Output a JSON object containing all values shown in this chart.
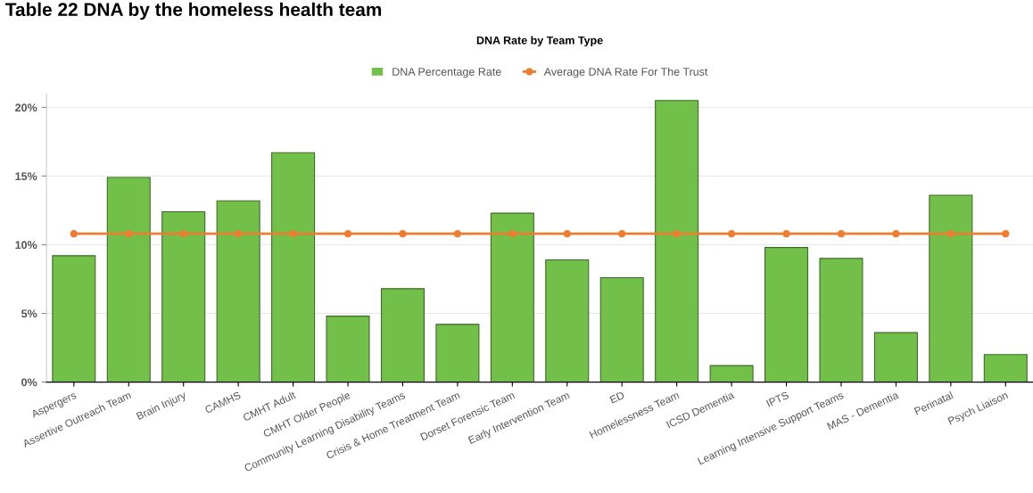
{
  "chart_data": {
    "type": "bar",
    "title": "DNA Rate by Team Type",
    "annotations": [
      "Table 22 DNA by the homeless health team"
    ],
    "categories": [
      "Aspergers",
      "Assertive Outreach Team",
      "Brain Injury",
      "CAMHS",
      "CMHT Adult",
      "CMHT Older People",
      "Community Learning Disability Teams",
      "Crisis & Home Treatment Team",
      "Dorset Forensic Team",
      "Early Intervention Team",
      "ED",
      "Homelessness Team",
      "ICSD Dementia",
      "IPTS",
      "Learning Intensive Support Teams",
      "MAS - Dementia",
      "Perinatal",
      "Psych Liaison"
    ],
    "series": [
      {
        "name": "DNA Percentage Rate",
        "color": "#72c04a",
        "values": [
          9.2,
          14.9,
          12.4,
          13.2,
          16.7,
          4.8,
          6.8,
          4.2,
          12.3,
          8.9,
          7.6,
          20.5,
          1.2,
          9.8,
          9.0,
          3.6,
          13.6,
          2.0
        ]
      },
      {
        "name": "Average DNA Rate For The Trust",
        "type": "line",
        "color": "#ed7d31",
        "marker": "circle",
        "values": [
          10.8,
          10.8,
          10.8,
          10.8,
          10.8,
          10.8,
          10.8,
          10.8,
          10.8,
          10.8,
          10.8,
          10.8,
          10.8,
          10.8,
          10.8,
          10.8,
          10.8,
          10.8
        ]
      }
    ],
    "ylim": [
      0,
      21
    ],
    "yticks": [
      {
        "value": 0,
        "label": "0%"
      },
      {
        "value": 5,
        "label": "5%"
      },
      {
        "value": 10,
        "label": "10%"
      },
      {
        "value": 15,
        "label": "15%"
      },
      {
        "value": 20,
        "label": "20%"
      }
    ],
    "grid": "y",
    "legend": "top"
  }
}
